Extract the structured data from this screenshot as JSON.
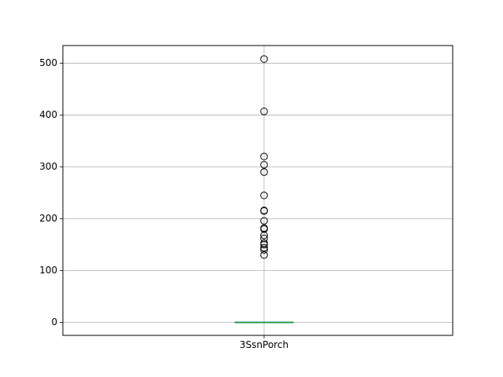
{
  "chart_data": {
    "type": "box",
    "title": "",
    "xlabel": "",
    "ylabel": "",
    "categories": [
      "3SsnPorch"
    ],
    "ylim": [
      -25,
      534
    ],
    "y_ticks": [
      0,
      100,
      200,
      300,
      400,
      500
    ],
    "y_tick_labels": [
      "0",
      "100",
      "200",
      "300",
      "400",
      "500"
    ],
    "grid": true,
    "box": {
      "min": 0,
      "q1": 0,
      "median": 0,
      "q3": 0,
      "max": 0
    },
    "outliers": [
      508,
      407,
      320,
      304,
      290,
      245,
      216,
      215,
      196,
      182,
      180,
      168,
      162,
      153,
      150,
      144,
      140,
      130
    ],
    "colors": {
      "box": "#1f77b4",
      "median": "#2ca02c",
      "grid": "#b0b0b0",
      "outlier_edge": "#000000"
    }
  }
}
